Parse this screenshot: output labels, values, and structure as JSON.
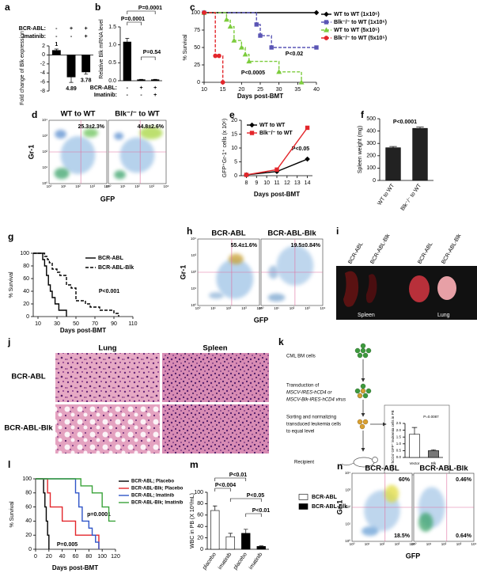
{
  "chart_data": [
    {
      "label": "a",
      "type": "bar",
      "ylabel": "Fold change of Blk expression",
      "rows": [
        {
          "name": "BCR-ABL:",
          "values": [
            "-",
            "+",
            "+"
          ]
        },
        {
          "name": "Imatinib:",
          "values": [
            "-",
            "-",
            "+"
          ]
        }
      ],
      "values": [
        1,
        -4.89,
        -3.78
      ],
      "errors": [
        0.3,
        1.2,
        0.5
      ],
      "value_labels": [
        "1",
        "4.89",
        "3.78"
      ],
      "color": "#000000",
      "ylim": [
        -8,
        2
      ],
      "yticks": [
        2,
        0,
        -2,
        -4,
        -6,
        -8
      ]
    },
    {
      "label": "b",
      "type": "bar",
      "ylabel": "Relative Blk mRNA level",
      "rows": [
        {
          "name": "BCR-ABL:",
          "values": [
            "-",
            "+",
            "+"
          ]
        },
        {
          "name": "Imatinib:",
          "values": [
            "-",
            "-",
            "+"
          ]
        }
      ],
      "values": [
        1.08,
        0.03,
        0.03
      ],
      "errors": [
        0.1,
        0.01,
        0.01
      ],
      "color": "#000000",
      "ylim": [
        0,
        1.5
      ],
      "yticks": [
        {
          "value": 0,
          "label": "0.0"
        },
        0.5,
        {
          "value": 1,
          "label": "1.0"
        },
        1.5
      ],
      "annotations": [
        "P=0.0001",
        "P=0.0001",
        "P=0.54"
      ]
    },
    {
      "label": "c",
      "type": "line",
      "step": true,
      "xlabel": "Days post-BMT",
      "ylabel": "% Survival",
      "xlim": [
        10,
        40
      ],
      "xticks": [
        10,
        15,
        20,
        25,
        30,
        35,
        40
      ],
      "ylim": [
        0,
        100
      ],
      "yticks": [
        0,
        25,
        50,
        75,
        100
      ],
      "series": [
        {
          "name": "WT to WT (1x10⁶)",
          "color": "#000000",
          "marker": "diamond",
          "dashed": false,
          "x": [
            10,
            40
          ],
          "values": [
            100,
            100
          ]
        },
        {
          "name": "Blk⁻/⁻ to WT (1x10⁶)",
          "color": "#5a55b5",
          "marker": "square",
          "dashed": true,
          "x": [
            10,
            24,
            25,
            28,
            40
          ],
          "values": [
            100,
            83,
            67,
            50,
            50
          ]
        },
        {
          "name": "WT to WT (5x10⁵)",
          "color": "#7ccc3c",
          "marker": "triangle",
          "dashed": true,
          "x": [
            10,
            16,
            17,
            18,
            20,
            21,
            22,
            30,
            36
          ],
          "values": [
            100,
            90,
            80,
            60,
            50,
            40,
            30,
            15,
            0
          ]
        },
        {
          "name": "Blk⁻/⁻ to WT (5x10⁵)",
          "color": "#e3262b",
          "marker": "circle",
          "dashed": true,
          "x": [
            10,
            13,
            14,
            15
          ],
          "values": [
            100,
            38,
            38,
            0
          ]
        }
      ],
      "annotations": [
        "P<0.02",
        "P<0.0005"
      ]
    },
    {
      "label": "e",
      "type": "line",
      "xlabel": "Days post-BMT",
      "ylabel": "GFP⁺Gr-1⁺ cells (x 10⁶)",
      "x": [
        8,
        11,
        14
      ],
      "xlim": [
        7.5,
        14.5
      ],
      "xticks": [
        8,
        9,
        10,
        11,
        12,
        13,
        14
      ],
      "ylim": [
        0,
        20
      ],
      "yticks": [
        0,
        5,
        10,
        15,
        20
      ],
      "series": [
        {
          "name": "WT to WT",
          "color": "#000000",
          "marker": "diamond",
          "dashed": false,
          "values": [
            0.3,
            1.5,
            6
          ]
        },
        {
          "name": "Blk⁻/⁻ to WT",
          "color": "#e3262b",
          "marker": "square",
          "dashed": false,
          "values": [
            0.3,
            2.2,
            17.3
          ]
        }
      ],
      "annotations": [
        "P<0.05"
      ]
    },
    {
      "label": "f",
      "type": "bar",
      "ylabel": "Spleen weight (mg)",
      "categories": [
        "WT to WT",
        "Blk⁻/⁻ to WT"
      ],
      "values": [
        265,
        422
      ],
      "errors": [
        10,
        10
      ],
      "color": "#222222",
      "ylim": [
        0,
        500
      ],
      "yticks": [
        0,
        100,
        200,
        300,
        400,
        500
      ],
      "annotations": [
        "P<0.0001"
      ]
    },
    {
      "label": "g",
      "type": "line",
      "step": true,
      "xlabel": "Days post-BMT",
      "ylabel": "% Survival",
      "xlim": [
        5,
        110
      ],
      "xticks": [
        10,
        30,
        50,
        70,
        90,
        110
      ],
      "ylim": [
        0,
        100
      ],
      "yticks": [
        0,
        20,
        40,
        60,
        80,
        100
      ],
      "series": [
        {
          "name": "BCR-ABL",
          "color": "#000000",
          "dashed": false,
          "x": [
            5,
            15,
            17,
            19,
            21,
            23,
            25,
            28,
            32,
            40
          ],
          "values": [
            100,
            90,
            80,
            65,
            50,
            40,
            30,
            20,
            10,
            0
          ]
        },
        {
          "name": "BCR-ABL-Blk",
          "color": "#000000",
          "dashed": true,
          "x": [
            5,
            17,
            20,
            22,
            25,
            30,
            33,
            40,
            45,
            50,
            60,
            65,
            75,
            90,
            95
          ],
          "values": [
            100,
            95,
            90,
            85,
            75,
            70,
            65,
            50,
            45,
            25,
            20,
            15,
            10,
            5,
            0
          ]
        }
      ],
      "annotations": [
        "P<0.001"
      ]
    },
    {
      "type": "bar",
      "ylabel": "% of hCD4⁺GFP⁺ leukemia cells in PB",
      "categories": [
        "Vector",
        "Blk"
      ],
      "values": [
        1.7,
        0.5
      ],
      "errors": [
        0.5,
        0.07
      ],
      "colors": [
        "#ffffff",
        "#777777"
      ],
      "ylim": [
        0,
        2.5
      ],
      "yticks": [
        {
          "value": 0,
          "label": "0.0"
        },
        0.5,
        {
          "value": 1,
          "label": "1.0"
        },
        1.5,
        {
          "value": 2,
          "label": "2.0"
        },
        2.5
      ],
      "annotations": [
        "P=0.0087"
      ]
    },
    {
      "label": "l",
      "type": "line",
      "step": true,
      "xlabel": "Days post-BMT",
      "ylabel": "% Survival",
      "xlim": [
        0,
        120
      ],
      "xticks": [
        0,
        20,
        40,
        60,
        80,
        100,
        120
      ],
      "ylim": [
        0,
        100
      ],
      "yticks": [
        0,
        20,
        40,
        60,
        80,
        100
      ],
      "series": [
        {
          "name": "BCR-ABL; Placebo",
          "color": "#000000",
          "dashed": false,
          "x": [
            0,
            12,
            14,
            16,
            18,
            20
          ],
          "values": [
            100,
            80,
            60,
            40,
            20,
            0
          ]
        },
        {
          "name": "BCR-ABL-Blk; Placebo",
          "color": "#e3262b",
          "dashed": false,
          "x": [
            0,
            18,
            22,
            40,
            60,
            95
          ],
          "values": [
            100,
            80,
            60,
            40,
            20,
            0
          ]
        },
        {
          "name": "BCR-ABL; Imatinib",
          "color": "#2f55c8",
          "dashed": false,
          "x": [
            0,
            60,
            65,
            70,
            80,
            85,
            90,
            95
          ],
          "values": [
            100,
            80,
            60,
            40,
            30,
            20,
            10,
            0
          ]
        },
        {
          "name": "BCR-ABL-Blk; Imatinib",
          "color": "#3aa33a",
          "dashed": false,
          "x": [
            0,
            68,
            85,
            100,
            110,
            120
          ],
          "values": [
            100,
            90,
            80,
            60,
            40,
            40
          ]
        }
      ],
      "annotations": [
        "P=0.005",
        "p=0.0001"
      ]
    },
    {
      "label": "m",
      "type": "bar",
      "ylabel": "WBC in PB (X 10³/mL)",
      "categories": [
        "placebo",
        "imatinib",
        "placebo",
        "imatinib"
      ],
      "series": [
        {
          "name": "BCR-ABL",
          "color": "#ffffff",
          "values": [
            68,
            22,
            null,
            null
          ],
          "errors": [
            8,
            6,
            null,
            null
          ]
        },
        {
          "name": "BCR-ABL-Blk",
          "color": "#000000",
          "values": [
            null,
            null,
            28,
            5
          ],
          "errors": [
            null,
            null,
            7,
            1
          ]
        }
      ],
      "ylim": [
        0,
        100
      ],
      "yticks": [
        0,
        20,
        40,
        60,
        80,
        100
      ],
      "annotations": [
        "P<0.01",
        "P<0.004",
        "P<0.05",
        "P<0.01"
      ]
    }
  ],
  "flow": [
    {
      "label": "d",
      "xlabel": "GFP",
      "ylabel": "Gr-1",
      "ticks": [
        "10⁰",
        "10¹",
        "10²",
        "10³",
        "10⁴"
      ],
      "plots": [
        {
          "title": "WT to WT",
          "gates": [
            "25.3±2.3%"
          ]
        },
        {
          "title": "Blk⁻/⁻ to WT",
          "gates": [
            "44.8±2.6%"
          ]
        }
      ]
    },
    {
      "label": "h",
      "xlabel": "GFP",
      "ylabel": "Gr-1",
      "ticks": [
        "10⁰",
        "10¹",
        "10²",
        "10³",
        "10⁴"
      ],
      "plots": [
        {
          "title": "BCR-ABL",
          "gates": [
            "55.4±1.6%"
          ]
        },
        {
          "title": "BCR-ABL-Blk",
          "gates": [
            "19.5±0.84%"
          ]
        }
      ]
    },
    {
      "label": "n",
      "xlabel": "GFP",
      "ylabel": "Gr-1",
      "ticks": [
        "10⁰",
        "10¹",
        "10²",
        "10³",
        "10⁴"
      ],
      "plots": [
        {
          "title": "BCR-ABL",
          "gates": [
            "60%",
            "18.5%"
          ]
        },
        {
          "title": "BCR-ABL-Blk",
          "gates": [
            "0.46%",
            "0.64%"
          ]
        }
      ]
    }
  ],
  "photos": {
    "label": "i",
    "columns": [
      "BCR-ABL",
      "BCR-ABL-Blk",
      "BCR-ABL",
      "BCR-ABL-Blk"
    ],
    "organs": [
      "Spleen",
      "Lung"
    ]
  },
  "histology": {
    "label": "j",
    "columns": [
      "Lung",
      "Spleen"
    ],
    "rows": [
      "BCR-ABL",
      "BCR-ABL-Blk"
    ]
  },
  "schematic": {
    "label": "k",
    "steps": [
      [
        "CML BM cells"
      ],
      [
        "Transduction of",
        "MSCV-IRES-hCD4 or",
        "MSCV-Blk-IRES-hCD4 virus"
      ],
      [
        "Sorting and normalizing",
        "transduced leukemia cells",
        "to equal level"
      ],
      [
        "Recipient"
      ]
    ]
  }
}
